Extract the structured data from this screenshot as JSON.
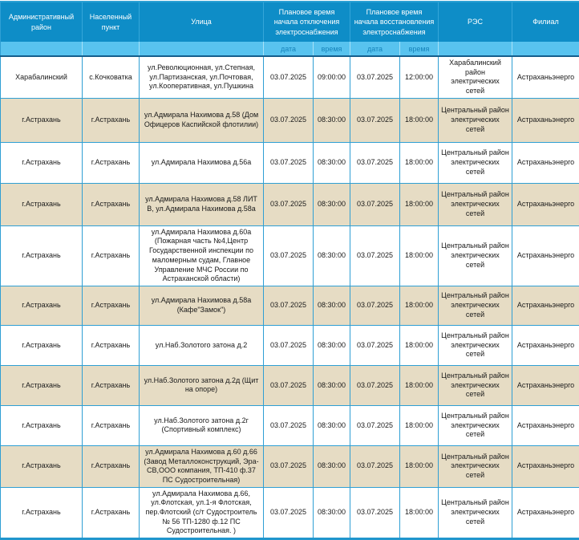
{
  "table": {
    "headers": {
      "admin_district": "Административный район",
      "settlement": "Населенный пункт",
      "street": "Улица",
      "outage_group": "Плановое время начала отключения электроснабжения",
      "restore_group": "Плановое время начала восстановления электроснабжения",
      "res": "РЭС",
      "branch": "Филиал",
      "date_label_1": "дата",
      "time_label_1": "время",
      "date_label_2": "дата",
      "time_label_2": "время"
    },
    "colors": {
      "header_bg": "#0e8dc7",
      "subheader_bg": "#58c3ef",
      "subheader_text": "#1583bb",
      "row_alt_bg": "#e6dcc4",
      "cell_border": "#2f9fd4",
      "header_divider": "#155e8c"
    },
    "rows": [
      {
        "district": "Харабалинский",
        "settlement": "с.Кочковатка",
        "street": "ул.Революционная, ул.Степная, ул.Партизанская, ул.Почтовая, ул.Кооперативная, ул.Пушкина",
        "outage_date": "03.07.2025",
        "outage_time": "09:00:00",
        "restore_date": "03.07.2025",
        "restore_time": "12:00:00",
        "res": "Харабалинский район электрических сетей",
        "branch": "Астраханьэнерго"
      },
      {
        "district": "г.Астрахань",
        "settlement": "г.Астрахань",
        "street": "ул.Адмирала Нахимова д.58 (Дом Офицеров Каспийской флотилии)",
        "outage_date": "03.07.2025",
        "outage_time": "08:30:00",
        "restore_date": "03.07.2025",
        "restore_time": "18:00:00",
        "res": "Центральный район электрических сетей",
        "branch": "Астраханьэнерго"
      },
      {
        "district": "г.Астрахань",
        "settlement": "г.Астрахань",
        "street": "ул.Адмирала Нахимова д.56а",
        "outage_date": "03.07.2025",
        "outage_time": "08:30:00",
        "restore_date": "03.07.2025",
        "restore_time": "18:00:00",
        "res": "Центральный район электрических сетей",
        "branch": "Астраханьэнерго"
      },
      {
        "district": "г.Астрахань",
        "settlement": "г.Астрахань",
        "street": "ул.Адмирала Нахимова д.58 ЛИТ В, ул.Адмирала Нахимова д.58а",
        "outage_date": "03.07.2025",
        "outage_time": "08:30:00",
        "restore_date": "03.07.2025",
        "restore_time": "18:00:00",
        "res": "Центральный район электрических сетей",
        "branch": "Астраханьэнерго"
      },
      {
        "district": "г.Астрахань",
        "settlement": "г.Астрахань",
        "street": "ул.Адмирала Нахимова д.60а (Пожарная часть №4,Центр Государственной инспекции по маломерным судам, Главное Управление МЧС России по Астраханской области)",
        "outage_date": "03.07.2025",
        "outage_time": "08:30:00",
        "restore_date": "03.07.2025",
        "restore_time": "18:00:00",
        "res": "Центральный район электрических сетей",
        "branch": "Астраханьэнерго"
      },
      {
        "district": "г.Астрахань",
        "settlement": "г.Астрахань",
        "street": "ул.Адмирала Нахимова д.58а (Кафе\"Замок\")",
        "outage_date": "03.07.2025",
        "outage_time": "08:30:00",
        "restore_date": "03.07.2025",
        "restore_time": "18:00:00",
        "res": "Центральный район электрических сетей",
        "branch": "Астраханьэнерго"
      },
      {
        "district": "г.Астрахань",
        "settlement": "г.Астрахань",
        "street": "ул.Наб.Золотого затона д.2",
        "outage_date": "03.07.2025",
        "outage_time": "08:30:00",
        "restore_date": "03.07.2025",
        "restore_time": "18:00:00",
        "res": "Центральный район электрических сетей",
        "branch": "Астраханьэнерго"
      },
      {
        "district": "г.Астрахань",
        "settlement": "г.Астрахань",
        "street": "ул.Наб.Золотого затона д.2д (Щит на опоре)",
        "outage_date": "03.07.2025",
        "outage_time": "08:30:00",
        "restore_date": "03.07.2025",
        "restore_time": "18:00:00",
        "res": "Центральный район электрических сетей",
        "branch": "Астраханьэнерго"
      },
      {
        "district": "г.Астрахань",
        "settlement": "г.Астрахань",
        "street": "ул.Наб.Золотого затона д.2г (Спортивный комплекс)",
        "outage_date": "03.07.2025",
        "outage_time": "08:30:00",
        "restore_date": "03.07.2025",
        "restore_time": "18:00:00",
        "res": "Центральный район электрических сетей",
        "branch": "Астраханьэнерго"
      },
      {
        "district": "г.Астрахань",
        "settlement": "г.Астрахань",
        "street": "ул.Адмирала Нахимова д.60 д.66 (Завод Металлоконструкций, Эра-СВ,ООО компания, ТП-410 ф.37 ПС Судостроительная)",
        "outage_date": "03.07.2025",
        "outage_time": "08:30:00",
        "restore_date": "03.07.2025",
        "restore_time": "18:00:00",
        "res": "Центральный район электрических сетей",
        "branch": "Астраханьэнерго"
      },
      {
        "district": "г.Астрахань",
        "settlement": "г.Астрахань",
        "street": "ул.Адмирала Нахимова д.66, ул.Флотская, ул.1-я Флотская, пер.Флотский (с/т Судостроитель № 56 ТП-1280 ф.12 ПС Судостроительная. )",
        "outage_date": "03.07.2025",
        "outage_time": "08:30:00",
        "restore_date": "03.07.2025",
        "restore_time": "18:00:00",
        "res": "Центральный район электрических сетей",
        "branch": "Астраханьэнерго"
      }
    ]
  }
}
